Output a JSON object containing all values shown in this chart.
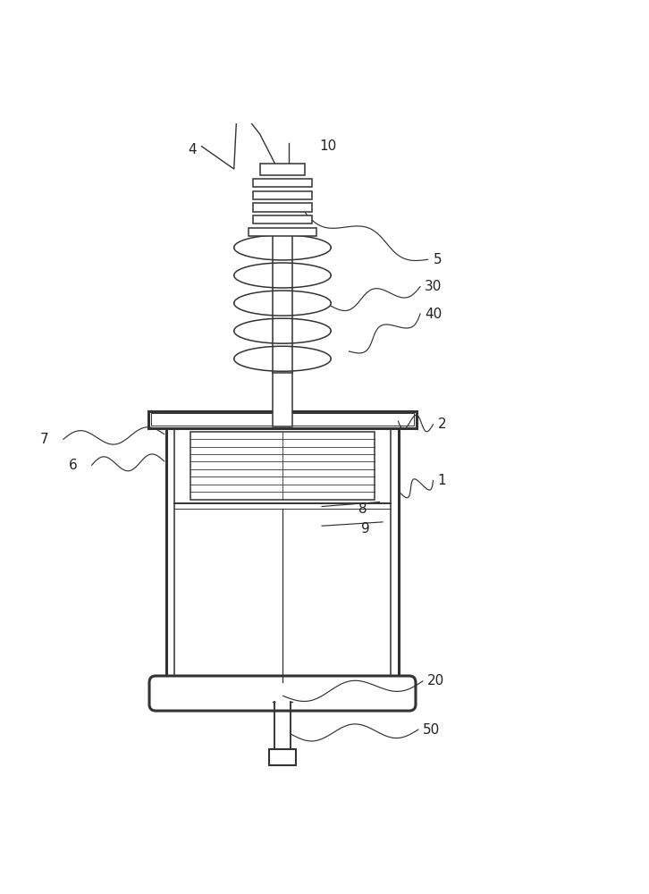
{
  "bg_color": "#ffffff",
  "line_color": "#333333",
  "label_color": "#222222",
  "fig_width": 7.26,
  "fig_height": 10.0
}
